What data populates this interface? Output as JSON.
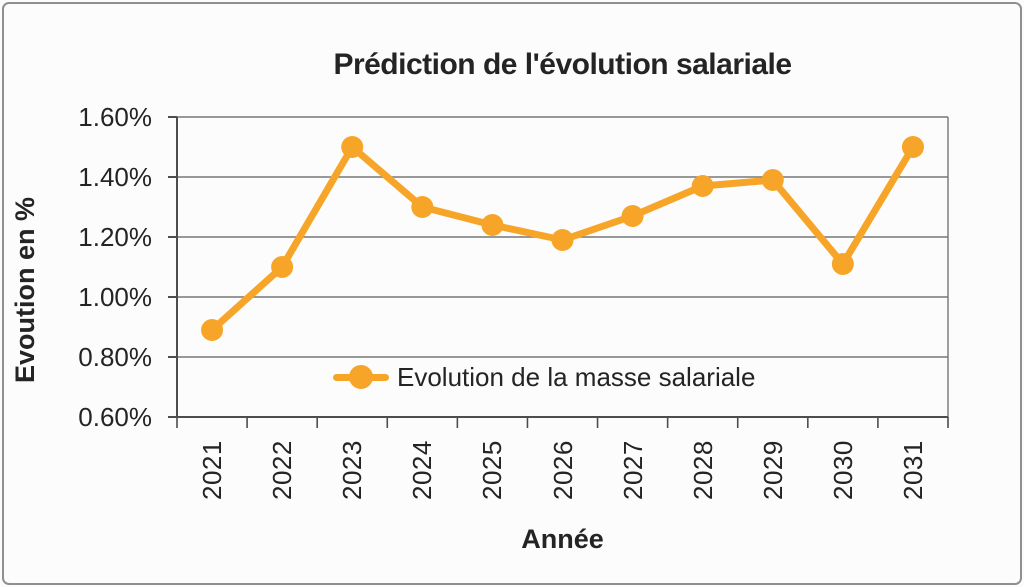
{
  "chart_data": {
    "type": "line",
    "title": "Prédiction de l'évolution salariale",
    "xlabel": "Année",
    "ylabel": "Evoution en %",
    "categories": [
      "2021",
      "2022",
      "2023",
      "2024",
      "2025",
      "2026",
      "2027",
      "2028",
      "2029",
      "2030",
      "2031"
    ],
    "series": [
      {
        "name": "Evolution de la masse salariale",
        "values": [
          0.89,
          1.1,
          1.5,
          1.3,
          1.24,
          1.19,
          1.27,
          1.37,
          1.39,
          1.11,
          1.5
        ]
      }
    ],
    "ylim": [
      0.6,
      1.6
    ],
    "ytick_step": 0.2,
    "ytick_labels": [
      "1.60%",
      "1.40%",
      "1.20%",
      "1.00%",
      "0.80%",
      "0.60%"
    ],
    "grid": true,
    "legend_position": "inside-bottom-center",
    "marker": "circle",
    "colors": {
      "series": "#F7A528",
      "gridline": "#767676",
      "axis": "#4d4d4d",
      "text": "#242424",
      "background": "#fcfcfc",
      "border": "#8f8f8f"
    }
  }
}
